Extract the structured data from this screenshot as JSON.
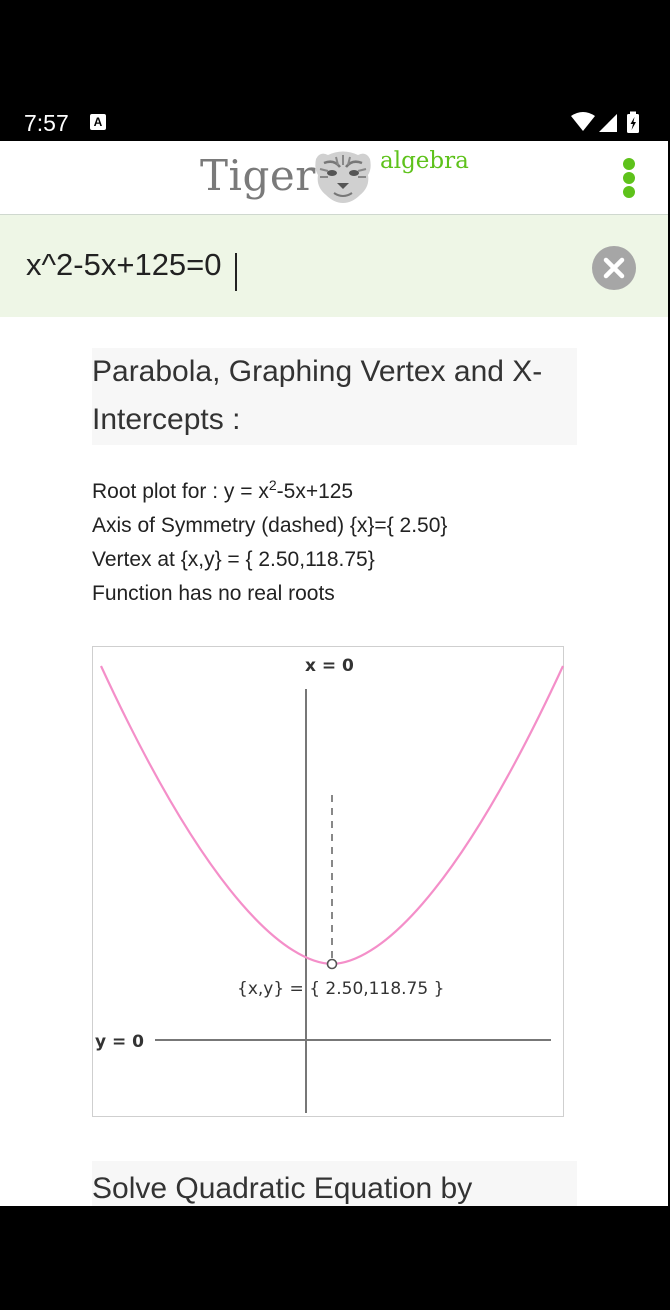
{
  "status": {
    "time": "7:57",
    "notification_icon": "A",
    "icons": [
      "wifi-icon",
      "signal-icon",
      "battery-icon"
    ]
  },
  "app": {
    "logo_text": "Tiger",
    "logo_accent_text": "algebra",
    "brand_color": "#5ec21b",
    "menu_icon": "more-vert-icon"
  },
  "input": {
    "value": "x^2-5x+125=0",
    "clear_icon": "close-icon"
  },
  "section1": {
    "heading_line1": "Parabola, Graphing Vertex and X-",
    "heading_line2": "Intercepts :",
    "root_plot_prefix": "Root plot for :  y = x",
    "root_plot_exp": "2",
    "root_plot_suffix": "-5x+125",
    "axis_line": "Axis of Symmetry (dashed)  {x}={ 2.50}",
    "vertex_line": "Vertex at  {x,y} = { 2.50,118.75}",
    "roots_line": "Function has no real roots"
  },
  "graph": {
    "x_axis_label": "x = 0",
    "y_axis_label": "y = 0",
    "vertex_label": "{x,y} = { 2.50,118.75 }",
    "curve_color": "#f48fc9",
    "axis_color": "#777777"
  },
  "section2": {
    "heading": "Solve Quadratic Equation by"
  }
}
